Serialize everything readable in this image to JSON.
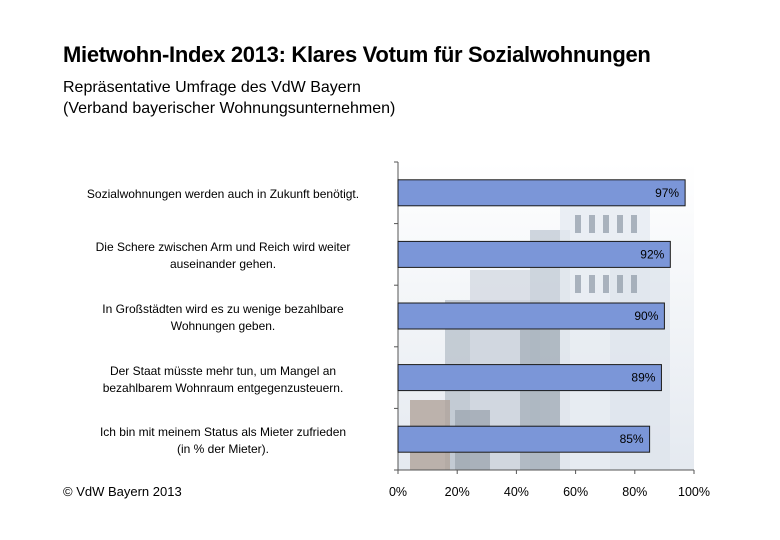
{
  "title": "Mietwohn-Index 2013: Klares Votum für Sozialwohnungen",
  "subtitle_line1": "Repräsentative Umfrage des VdW Bayern",
  "subtitle_line2": "(Verband bayerischer Wohnungsunternehmen)",
  "copyright": "© VdW Bayern 2013",
  "colors": {
    "bar_fill": "#7b96d8",
    "bar_stroke": "#1a1a1a",
    "axis": "#555555",
    "photo_sky": "#cfd8e4",
    "photo_building": "#e6ebf1"
  },
  "chart_data": {
    "type": "bar",
    "orientation": "horizontal",
    "categories": [
      "Sozialwohnungen werden auch in Zukunft benötigt.",
      "Die Schere zwischen Arm und Reich wird weiter auseinander gehen.",
      "In Großstädten wird es zu wenige bezahlbare Wohnungen geben.",
      "Der Staat müsste mehr tun, um Mangel an bezahlbarem Wohnraum entgegenzusteuern.",
      "Ich bin mit meinem Status als Mieter zufrieden (in % der Mieter)."
    ],
    "category_lines": [
      [
        "Sozialwohnungen werden auch in Zukunft benötigt."
      ],
      [
        "Die Schere zwischen Arm und Reich wird weiter",
        "auseinander gehen."
      ],
      [
        "In Großstädten wird es zu wenige bezahlbare",
        "Wohnungen geben."
      ],
      [
        "Der Staat müsste mehr tun, um Mangel an",
        "bezahlbarem Wohnraum entgegenzusteuern."
      ],
      [
        "Ich bin mit meinem Status als Mieter zufrieden",
        "(in % der Mieter)."
      ]
    ],
    "values": [
      97,
      92,
      90,
      89,
      85
    ],
    "value_labels": [
      "97%",
      "92%",
      "90%",
      "89%",
      "85%"
    ],
    "xlim": [
      0,
      100
    ],
    "xticks": [
      0,
      20,
      40,
      60,
      80,
      100
    ],
    "xtick_labels": [
      "0%",
      "20%",
      "40%",
      "60%",
      "80%",
      "100%"
    ],
    "grid": false,
    "legend": "none",
    "background": "photo of apartment buildings behind plot area"
  }
}
